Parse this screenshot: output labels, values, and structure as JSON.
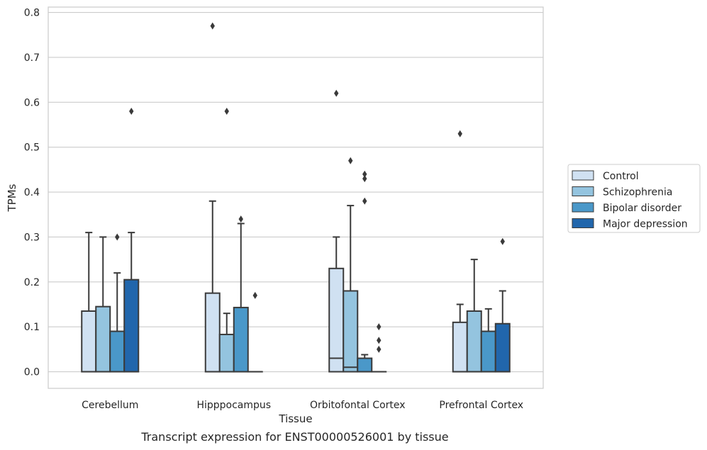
{
  "chart_data": {
    "type": "box",
    "title": "",
    "caption": "Transcript expression for ENST00000526001 by tissue",
    "xlabel": "Tissue",
    "ylabel": "TPMs",
    "ylim": [
      -0.037,
      0.812
    ],
    "yticks": [
      "0.0",
      "0.1",
      "0.2",
      "0.3",
      "0.4",
      "0.5",
      "0.6",
      "0.7",
      "0.8"
    ],
    "grid": "horizontal",
    "legend_position": "right",
    "categories": [
      "Cerebellum",
      "Hipppocampus",
      "Orbitofontal Cortex",
      "Prefrontal Cortex"
    ],
    "series": [
      {
        "name": "Control",
        "color": "#d0e1f2",
        "boxes": [
          {
            "q1": 0.0,
            "median": 0.0,
            "q3": 0.135,
            "whisker_low": 0.0,
            "whisker_high": 0.31,
            "outliers": []
          },
          {
            "q1": 0.0,
            "median": 0.0,
            "q3": 0.175,
            "whisker_low": 0.0,
            "whisker_high": 0.38,
            "outliers": [
              0.77
            ]
          },
          {
            "q1": 0.0,
            "median": 0.03,
            "q3": 0.23,
            "whisker_low": 0.0,
            "whisker_high": 0.3,
            "outliers": [
              0.62
            ]
          },
          {
            "q1": 0.0,
            "median": 0.0,
            "q3": 0.11,
            "whisker_low": 0.0,
            "whisker_high": 0.15,
            "outliers": [
              0.53
            ]
          }
        ]
      },
      {
        "name": "Schizophrenia",
        "color": "#94c4df",
        "boxes": [
          {
            "q1": 0.0,
            "median": 0.0,
            "q3": 0.145,
            "whisker_low": 0.0,
            "whisker_high": 0.3,
            "outliers": []
          },
          {
            "q1": 0.0,
            "median": 0.0,
            "q3": 0.083,
            "whisker_low": 0.0,
            "whisker_high": 0.13,
            "outliers": [
              0.58
            ]
          },
          {
            "q1": 0.0,
            "median": 0.01,
            "q3": 0.18,
            "whisker_low": 0.0,
            "whisker_high": 0.37,
            "outliers": [
              0.47
            ]
          },
          {
            "q1": 0.0,
            "median": 0.0,
            "q3": 0.135,
            "whisker_low": 0.0,
            "whisker_high": 0.25,
            "outliers": []
          }
        ]
      },
      {
        "name": "Bipolar disorder",
        "color": "#4a98c9",
        "boxes": [
          {
            "q1": 0.0,
            "median": 0.0,
            "q3": 0.09,
            "whisker_low": 0.0,
            "whisker_high": 0.22,
            "outliers": [
              0.3
            ]
          },
          {
            "q1": 0.0,
            "median": 0.0,
            "q3": 0.143,
            "whisker_low": 0.0,
            "whisker_high": 0.33,
            "outliers": [
              0.34
            ]
          },
          {
            "q1": 0.0,
            "median": 0.0,
            "q3": 0.03,
            "whisker_low": 0.0,
            "whisker_high": 0.038,
            "outliers": [
              0.44,
              0.43,
              0.38
            ]
          },
          {
            "q1": 0.0,
            "median": 0.0,
            "q3": 0.09,
            "whisker_low": 0.0,
            "whisker_high": 0.14,
            "outliers": []
          }
        ]
      },
      {
        "name": "Major depression",
        "color": "#2166ac",
        "boxes": [
          {
            "q1": 0.0,
            "median": 0.0,
            "q3": 0.205,
            "whisker_low": 0.0,
            "whisker_high": 0.31,
            "outliers": [
              0.58
            ]
          },
          {
            "q1": 0.0,
            "median": 0.0,
            "q3": 0.0,
            "whisker_low": 0.0,
            "whisker_high": 0.0,
            "outliers": [
              0.17
            ]
          },
          {
            "q1": 0.0,
            "median": 0.0,
            "q3": 0.0,
            "whisker_low": 0.0,
            "whisker_high": 0.0,
            "outliers": [
              0.1,
              0.07,
              0.05
            ]
          },
          {
            "q1": 0.0,
            "median": 0.0,
            "q3": 0.107,
            "whisker_low": 0.0,
            "whisker_high": 0.18,
            "outliers": [
              0.29
            ]
          }
        ]
      }
    ]
  }
}
